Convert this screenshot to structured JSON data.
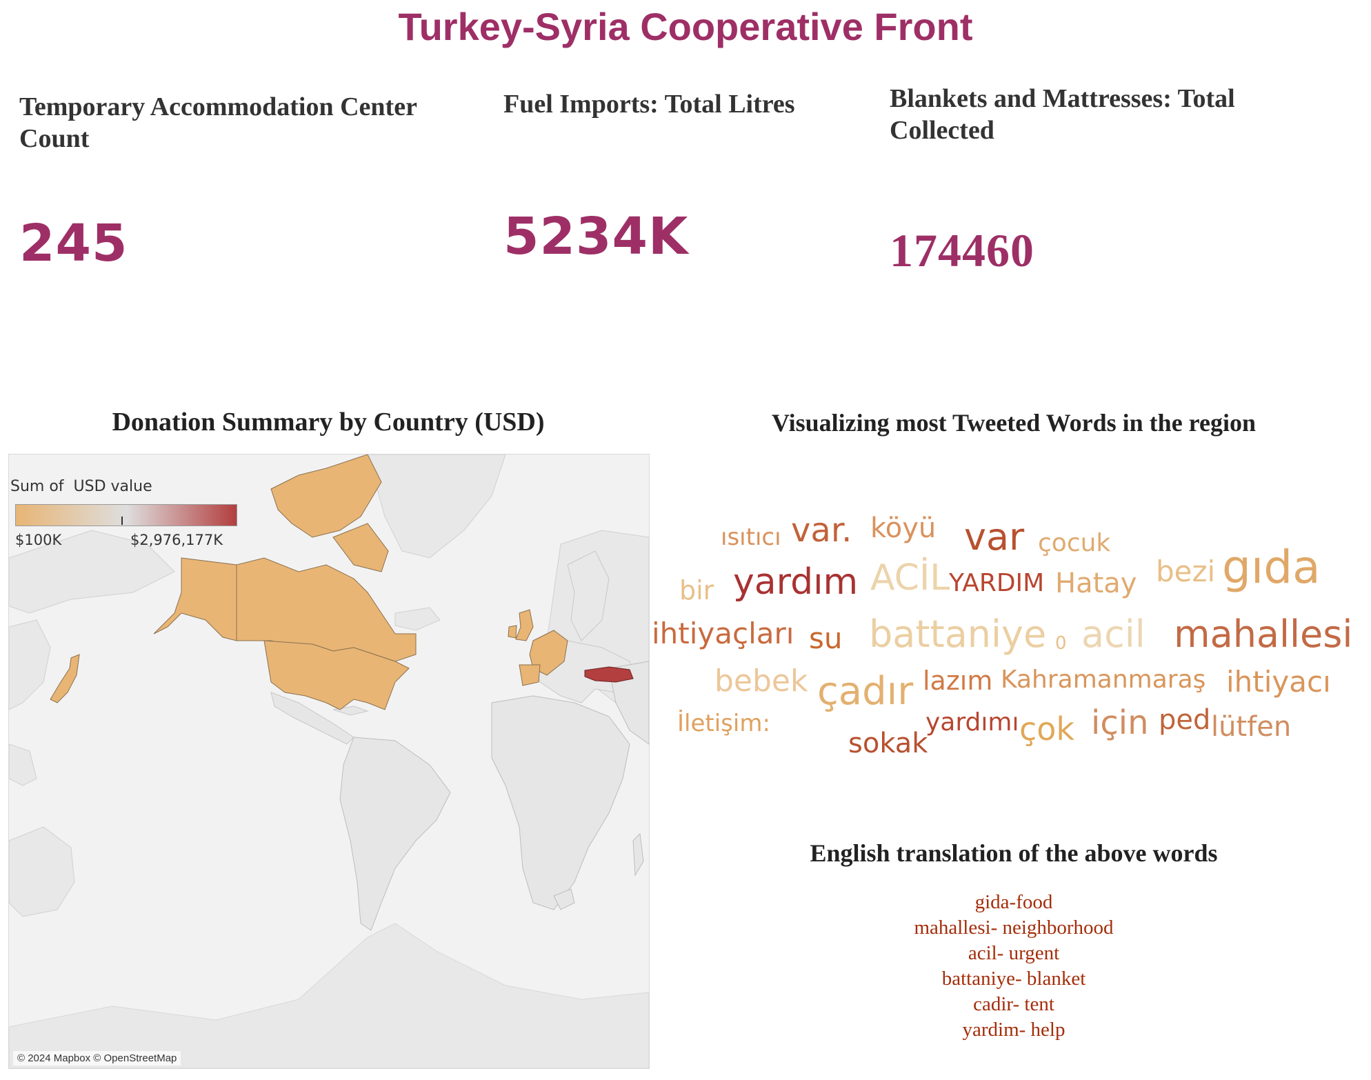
{
  "title": "Turkey-Syria Cooperative Front",
  "kpis": [
    {
      "label": "Temporary Accommodation Center Count",
      "value": "245"
    },
    {
      "label": "Fuel Imports: Total Litres",
      "value": "5234K"
    },
    {
      "label": "Blankets and Mattresses: Total Collected",
      "value": "174460"
    }
  ],
  "map": {
    "title": "Donation Summary by Country (USD)",
    "legend_title": "Sum of  USD value",
    "legend_min": "$100K",
    "legend_max": "$2,976,177K",
    "attribution": "© 2024 Mapbox © OpenStreetMap",
    "colors": {
      "low": "#e8b575",
      "mid": "#dedede",
      "high": "#b33f3f",
      "land": "#e6e6e6",
      "water": "#f2f2f2"
    }
  },
  "wordcloud": {
    "title": "Visualizing most Tweeted Words in the region",
    "words": [
      {
        "text": "ısıtıcı",
        "color": "#d9925c"
      },
      {
        "text": "var.",
        "color": "#c1623a"
      },
      {
        "text": "köyü",
        "color": "#d9925c"
      },
      {
        "text": "var",
        "color": "#b8512f"
      },
      {
        "text": "çocuk",
        "color": "#e0aa70"
      },
      {
        "text": "bir",
        "color": "#e8bf88"
      },
      {
        "text": "yardım",
        "color": "#a93232"
      },
      {
        "text": "ACİL",
        "color": "#ecd3aa"
      },
      {
        "text": "YARDIM",
        "color": "#b8452f"
      },
      {
        "text": "Hatay",
        "color": "#e0aa70"
      },
      {
        "text": "bezi",
        "color": "#e8bf88"
      },
      {
        "text": "gıda",
        "color": "#e0a868"
      },
      {
        "text": "ihtiyaçları",
        "color": "#c96a3e"
      },
      {
        "text": "su",
        "color": "#c9682e"
      },
      {
        "text": "battaniye",
        "color": "#ebcfa2"
      },
      {
        "text": "0",
        "color": "#e8bf88"
      },
      {
        "text": "acil",
        "color": "#ecd6b2"
      },
      {
        "text": "mahallesi",
        "color": "#c26a45"
      },
      {
        "text": "bebek",
        "color": "#ecc79a"
      },
      {
        "text": "çadır",
        "color": "#e3b070"
      },
      {
        "text": "lazım",
        "color": "#d07a44"
      },
      {
        "text": "Kahramanmaraş",
        "color": "#d9955a"
      },
      {
        "text": "ihtiyacı",
        "color": "#d9955a"
      },
      {
        "text": "İletişim:",
        "color": "#e0a05e"
      },
      {
        "text": "yardımı",
        "color": "#b8452f"
      },
      {
        "text": "çok",
        "color": "#e0a858"
      },
      {
        "text": "için",
        "color": "#d08d60"
      },
      {
        "text": "ped",
        "color": "#c0643a"
      },
      {
        "text": "lütfen",
        "color": "#d08d60"
      },
      {
        "text": "sokak",
        "color": "#b8512f"
      }
    ]
  },
  "translations": {
    "title": "English translation of the above words",
    "items": [
      "gida-food",
      "mahallesi- neighborhood",
      "acil- urgent",
      "battaniye- blanket",
      "cadir- tent",
      "yardim- help"
    ]
  }
}
